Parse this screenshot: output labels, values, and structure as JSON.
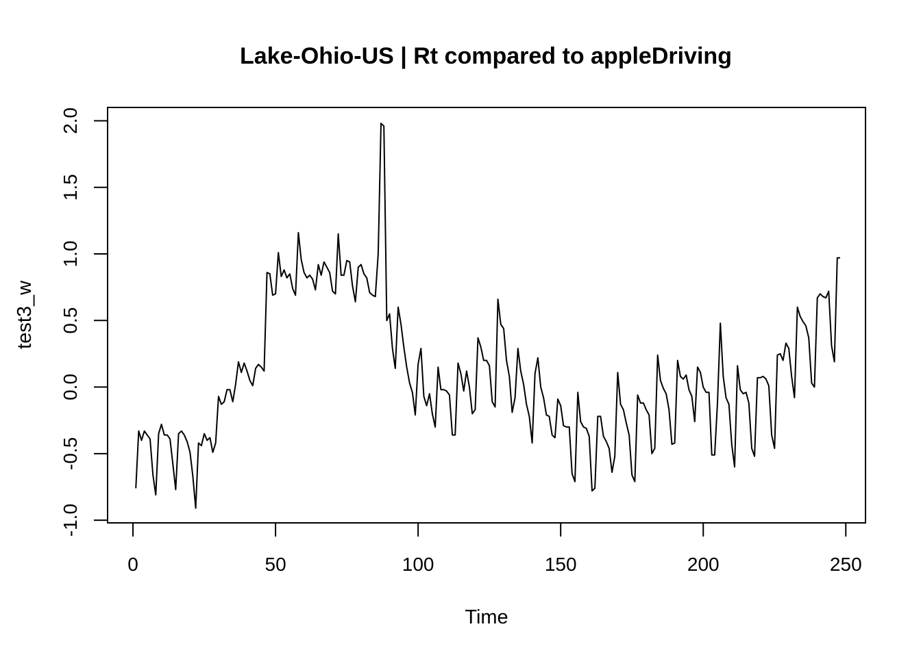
{
  "chart_data": {
    "type": "line",
    "title": "Lake-Ohio-US | Rt compared to appleDriving",
    "xlabel": "Time",
    "ylabel": "test3_w",
    "xlim": [
      -8.9,
      256.9
    ],
    "ylim": [
      -1.02,
      2.1
    ],
    "x_ticks": [
      "0",
      "50",
      "100",
      "150",
      "200",
      "250"
    ],
    "y_ticks": [
      "-1.0",
      "-0.5",
      "0.0",
      "0.5",
      "1.0",
      "1.5",
      "2.0"
    ],
    "grid": false,
    "line_color": "#000000",
    "x": [
      1,
      2,
      3,
      4,
      5,
      6,
      7,
      8,
      9,
      10,
      11,
      12,
      13,
      14,
      15,
      16,
      17,
      18,
      19,
      20,
      21,
      22,
      23,
      24,
      25,
      26,
      27,
      28,
      29,
      30,
      31,
      32,
      33,
      34,
      35,
      36,
      37,
      38,
      39,
      40,
      41,
      42,
      43,
      44,
      45,
      46,
      47,
      48,
      49,
      50,
      51,
      52,
      53,
      54,
      55,
      56,
      57,
      58,
      59,
      60,
      61,
      62,
      63,
      64,
      65,
      66,
      67,
      68,
      69,
      70,
      71,
      72,
      73,
      74,
      75,
      76,
      77,
      78,
      79,
      80,
      81,
      82,
      83,
      84,
      85,
      86,
      87,
      88,
      89,
      90,
      91,
      92,
      93,
      94,
      95,
      96,
      97,
      98,
      99,
      100,
      101,
      102,
      103,
      104,
      105,
      106,
      107,
      108,
      109,
      110,
      111,
      112,
      113,
      114,
      115,
      116,
      117,
      118,
      119,
      120,
      121,
      122,
      123,
      124,
      125,
      126,
      127,
      128,
      129,
      130,
      131,
      132,
      133,
      134,
      135,
      136,
      137,
      138,
      139,
      140,
      141,
      142,
      143,
      144,
      145,
      146,
      147,
      148,
      149,
      150,
      151,
      152,
      153,
      154,
      155,
      156,
      157,
      158,
      159,
      160,
      161,
      162,
      163,
      164,
      165,
      166,
      167,
      168,
      169,
      170,
      171,
      172,
      173,
      174,
      175,
      176,
      177,
      178,
      179,
      180,
      181,
      182,
      183,
      184,
      185,
      186,
      187,
      188,
      189,
      190,
      191,
      192,
      193,
      194,
      195,
      196,
      197,
      198,
      199,
      200,
      201,
      202,
      203,
      204,
      205,
      206,
      207,
      208,
      209,
      210,
      211,
      212,
      213,
      214,
      215,
      216,
      217,
      218,
      219,
      220,
      221,
      222,
      223,
      224,
      225,
      226,
      227,
      228,
      229,
      230,
      231,
      232,
      233,
      234,
      235,
      236,
      237,
      238,
      239,
      240,
      241,
      242,
      243,
      244,
      245,
      246,
      247,
      248
    ],
    "y": [
      -0.76,
      -0.33,
      -0.4,
      -0.33,
      -0.36,
      -0.39,
      -0.66,
      -0.81,
      -0.35,
      -0.28,
      -0.36,
      -0.36,
      -0.39,
      -0.58,
      -0.77,
      -0.35,
      -0.33,
      -0.36,
      -0.41,
      -0.49,
      -0.67,
      -0.91,
      -0.42,
      -0.44,
      -0.35,
      -0.4,
      -0.38,
      -0.49,
      -0.42,
      -0.07,
      -0.13,
      -0.11,
      -0.02,
      -0.02,
      -0.11,
      0.02,
      0.19,
      0.11,
      0.18,
      0.12,
      0.05,
      0.01,
      0.14,
      0.17,
      0.15,
      0.12,
      0.86,
      0.85,
      0.69,
      0.7,
      1.01,
      0.83,
      0.88,
      0.82,
      0.85,
      0.74,
      0.69,
      1.16,
      0.96,
      0.86,
      0.82,
      0.84,
      0.81,
      0.73,
      0.92,
      0.84,
      0.94,
      0.9,
      0.86,
      0.72,
      0.7,
      1.15,
      0.84,
      0.84,
      0.95,
      0.94,
      0.76,
      0.64,
      0.9,
      0.92,
      0.85,
      0.82,
      0.71,
      0.69,
      0.68,
      1.0,
      1.98,
      1.96,
      0.5,
      0.55,
      0.29,
      0.14,
      0.6,
      0.47,
      0.3,
      0.15,
      0.03,
      -0.04,
      -0.21,
      0.17,
      0.29,
      -0.07,
      -0.14,
      -0.05,
      -0.2,
      -0.3,
      0.15,
      -0.02,
      -0.02,
      -0.03,
      -0.06,
      -0.36,
      -0.36,
      0.18,
      0.1,
      -0.03,
      0.12,
      0.0,
      -0.2,
      -0.17,
      0.37,
      0.3,
      0.2,
      0.2,
      0.16,
      -0.11,
      -0.15,
      0.66,
      0.47,
      0.44,
      0.2,
      0.08,
      -0.19,
      -0.08,
      0.29,
      0.12,
      0.02,
      -0.13,
      -0.22,
      -0.42,
      0.1,
      0.22,
      0.0,
      -0.08,
      -0.21,
      -0.22,
      -0.36,
      -0.38,
      -0.09,
      -0.14,
      -0.29,
      -0.3,
      -0.3,
      -0.65,
      -0.71,
      -0.04,
      -0.26,
      -0.3,
      -0.31,
      -0.37,
      -0.78,
      -0.76,
      -0.22,
      -0.22,
      -0.37,
      -0.41,
      -0.46,
      -0.64,
      -0.52,
      0.11,
      -0.13,
      -0.17,
      -0.27,
      -0.36,
      -0.66,
      -0.71,
      -0.06,
      -0.12,
      -0.12,
      -0.17,
      -0.21,
      -0.5,
      -0.46,
      0.24,
      0.05,
      -0.01,
      -0.05,
      -0.17,
      -0.43,
      -0.42,
      0.2,
      0.08,
      0.06,
      0.09,
      -0.02,
      -0.07,
      -0.26,
      0.15,
      0.11,
      0.0,
      -0.04,
      -0.04,
      -0.51,
      -0.51,
      -0.12,
      0.48,
      0.08,
      -0.08,
      -0.13,
      -0.43,
      -0.6,
      0.16,
      -0.02,
      -0.05,
      -0.04,
      -0.12,
      -0.46,
      -0.52,
      0.07,
      0.07,
      0.08,
      0.06,
      0.01,
      -0.36,
      -0.46,
      0.24,
      0.25,
      0.2,
      0.33,
      0.29,
      0.08,
      -0.08,
      0.6,
      0.53,
      0.49,
      0.46,
      0.37,
      0.03,
      0.0,
      0.67,
      0.7,
      0.68,
      0.67,
      0.72,
      0.31,
      0.19,
      0.97,
      0.97
    ]
  }
}
